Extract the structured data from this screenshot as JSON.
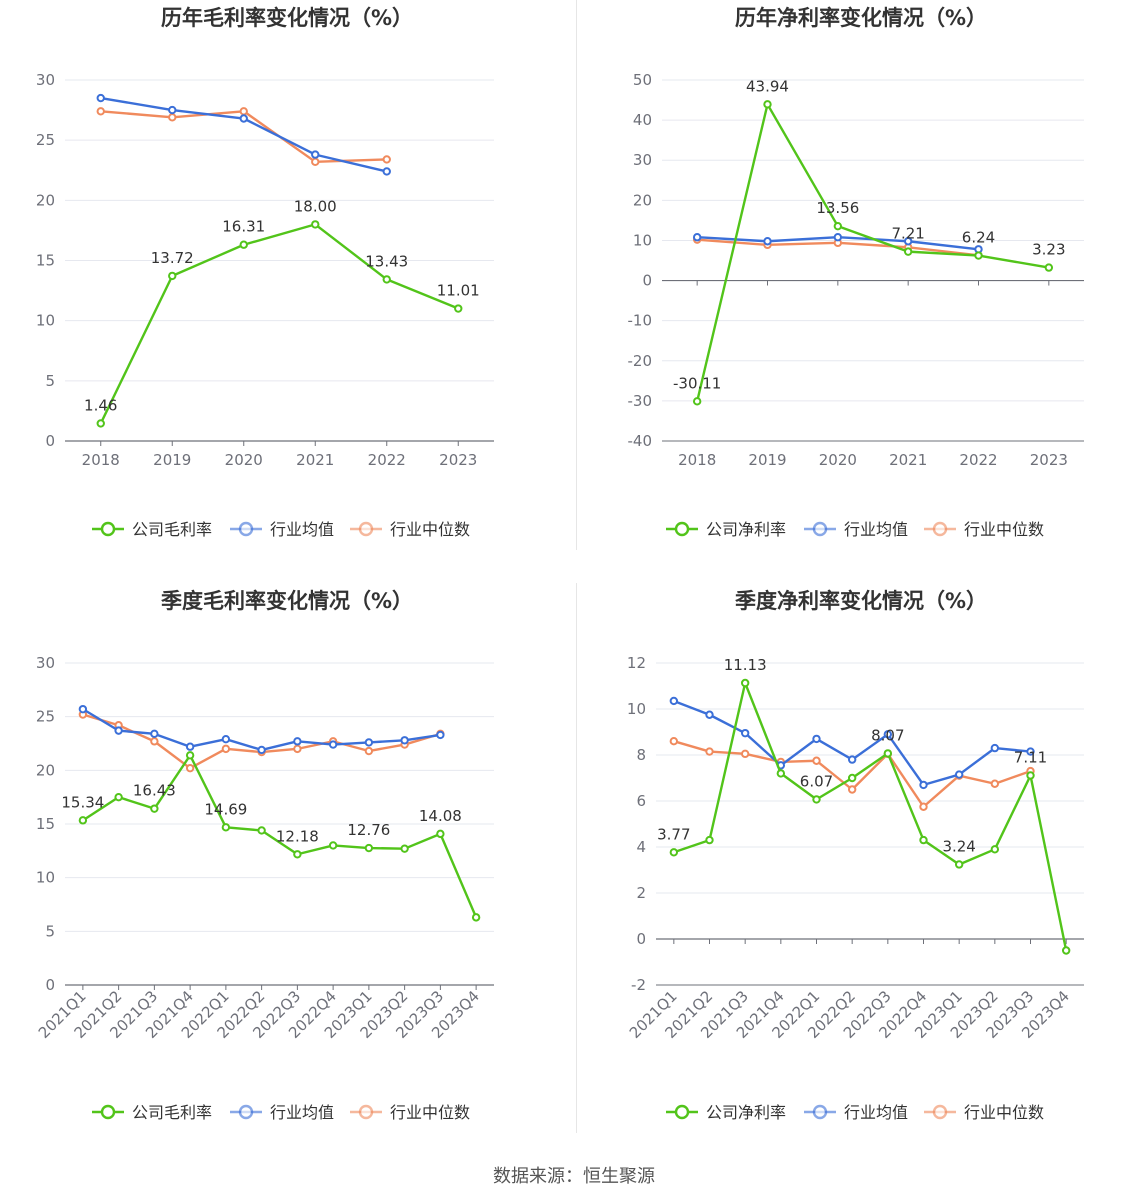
{
  "source": "数据来源：恒生聚源",
  "colors": {
    "company": "#52c41a",
    "avg": "#3b6fd8",
    "median": "#f08a5d"
  },
  "chart_data": [
    {
      "type": "line",
      "title": "历年毛利率变化情况（%）",
      "categories": [
        "2018",
        "2019",
        "2020",
        "2021",
        "2022",
        "2023"
      ],
      "yticks": [
        0,
        5,
        10,
        15,
        20,
        25,
        30
      ],
      "ylim": [
        0,
        30
      ],
      "series": [
        {
          "name": "公司毛利率",
          "key": "company",
          "values": [
            1.46,
            13.72,
            16.31,
            18.0,
            13.43,
            11.01
          ],
          "labels": [
            "1.46",
            "13.72",
            "16.31",
            "18.00",
            "13.43",
            "11.01"
          ]
        },
        {
          "name": "行业均值",
          "key": "avg",
          "values": [
            28.5,
            27.5,
            26.8,
            23.8,
            22.4,
            null
          ]
        },
        {
          "name": "行业中位数",
          "key": "median",
          "values": [
            27.4,
            26.9,
            27.4,
            23.2,
            23.4,
            null
          ]
        }
      ],
      "legend": "bottom"
    },
    {
      "type": "line",
      "title": "历年净利率变化情况（%）",
      "categories": [
        "2018",
        "2019",
        "2020",
        "2021",
        "2022",
        "2023"
      ],
      "yticks": [
        -40,
        -30,
        -20,
        -10,
        0,
        10,
        20,
        30,
        40,
        50
      ],
      "ylim": [
        -40,
        50
      ],
      "series": [
        {
          "name": "公司净利率",
          "key": "company",
          "values": [
            -30.11,
            43.94,
            13.56,
            7.21,
            6.24,
            3.23
          ],
          "labels": [
            "-30.11",
            "43.94",
            "13.56",
            "7.21",
            "6.24",
            "3.23"
          ]
        },
        {
          "name": "行业均值",
          "key": "avg",
          "values": [
            10.8,
            9.8,
            10.8,
            9.8,
            7.8,
            null
          ]
        },
        {
          "name": "行业中位数",
          "key": "median",
          "values": [
            10.2,
            8.9,
            9.4,
            8.3,
            6.3,
            null
          ]
        }
      ],
      "legend": "bottom"
    },
    {
      "type": "line",
      "title": "季度毛利率变化情况（%）",
      "categories": [
        "2021Q1",
        "2021Q2",
        "2021Q3",
        "2021Q4",
        "2022Q1",
        "2022Q2",
        "2022Q3",
        "2022Q4",
        "2023Q1",
        "2023Q2",
        "2023Q3",
        "2023Q4"
      ],
      "yticks": [
        0,
        5,
        10,
        15,
        20,
        25,
        30
      ],
      "ylim": [
        0,
        30
      ],
      "series": [
        {
          "name": "公司毛利率",
          "key": "company",
          "values": [
            15.34,
            17.5,
            16.43,
            21.4,
            14.69,
            14.4,
            12.18,
            13.0,
            12.76,
            12.7,
            14.08,
            6.3
          ],
          "labels": [
            "15.34",
            "",
            "16.43",
            "",
            "14.69",
            "",
            "12.18",
            "",
            "12.76",
            "",
            "14.08",
            ""
          ]
        },
        {
          "name": "行业均值",
          "key": "avg",
          "values": [
            25.7,
            23.7,
            23.4,
            22.2,
            22.9,
            21.9,
            22.7,
            22.4,
            22.6,
            22.8,
            23.3,
            null
          ]
        },
        {
          "name": "行业中位数",
          "key": "median",
          "values": [
            25.2,
            24.2,
            22.7,
            20.2,
            22.0,
            21.7,
            22.0,
            22.7,
            21.8,
            22.4,
            23.4,
            null
          ]
        }
      ],
      "legend": "bottom"
    },
    {
      "type": "line",
      "title": "季度净利率变化情况（%）",
      "categories": [
        "2021Q1",
        "2021Q2",
        "2021Q3",
        "2021Q4",
        "2022Q1",
        "2022Q2",
        "2022Q3",
        "2022Q4",
        "2023Q1",
        "2023Q2",
        "2023Q3",
        "2023Q4"
      ],
      "yticks": [
        -2,
        0,
        2,
        4,
        6,
        8,
        10,
        12
      ],
      "ylim": [
        -2,
        12
      ],
      "series": [
        {
          "name": "公司净利率",
          "key": "company",
          "values": [
            3.77,
            4.3,
            11.13,
            7.2,
            6.07,
            7.0,
            8.07,
            4.3,
            3.24,
            3.9,
            7.11,
            -0.5
          ],
          "labels": [
            "3.77",
            "",
            "11.13",
            "",
            "6.07",
            "",
            "8.07",
            "",
            "3.24",
            "",
            "7.11",
            ""
          ]
        },
        {
          "name": "行业均值",
          "key": "avg",
          "values": [
            10.35,
            9.75,
            8.95,
            7.55,
            8.7,
            7.8,
            8.9,
            6.7,
            7.15,
            8.3,
            8.15,
            null
          ]
        },
        {
          "name": "行业中位数",
          "key": "median",
          "values": [
            8.6,
            8.15,
            8.05,
            7.7,
            7.75,
            6.5,
            8.05,
            5.75,
            7.1,
            6.75,
            7.3,
            null
          ]
        }
      ],
      "legend": "bottom"
    }
  ]
}
